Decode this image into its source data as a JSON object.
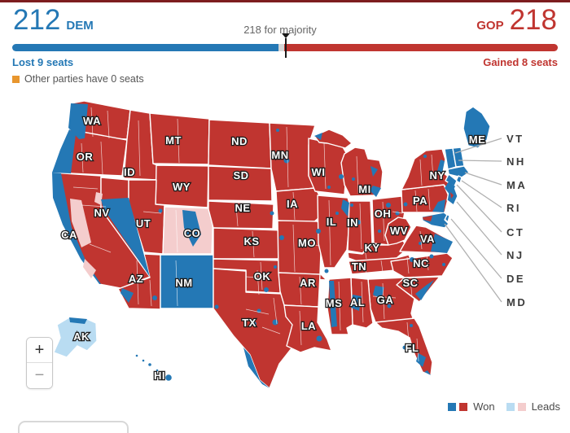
{
  "header": {
    "dem_seats": "212",
    "dem_label": "DEM",
    "majority_label": "218 for majority",
    "gop_label": "GOP",
    "gop_seats": "218",
    "dem_change": "Lost 9 seats",
    "gop_change": "Gained 8 seats",
    "other_note": "Other parties have 0 seats"
  },
  "bar": {
    "dem_seats": 212,
    "gop_seats": 218,
    "total_seats": 435,
    "majority": 218
  },
  "legend": {
    "won": "Won",
    "leads": "Leads"
  },
  "zoom_control": {
    "zoom_in": "+",
    "zoom_out": "−"
  },
  "colors": {
    "dem": "#2478b5",
    "gop": "#c03530",
    "dem_lead": "#b9dcf2",
    "gop_lead": "#f4cdcd",
    "undecided": "#d6d6d6",
    "other": "#e8962e",
    "marker": "#1a1a1a",
    "muted_text": "#666666",
    "legend_text": "#4a4a4a",
    "callout_text": "#3c3c3c",
    "leader_line": "#b0b0b0",
    "top_rule": "#7d1d1f"
  },
  "map": {
    "states": [
      {
        "abbr": "WA",
        "result": "gop"
      },
      {
        "abbr": "OR",
        "result": "gop"
      },
      {
        "abbr": "CA",
        "result": "gop"
      },
      {
        "abbr": "NV",
        "result": "gop"
      },
      {
        "abbr": "ID",
        "result": "gop"
      },
      {
        "abbr": "MT",
        "result": "gop"
      },
      {
        "abbr": "WY",
        "result": "gop"
      },
      {
        "abbr": "UT",
        "result": "gop"
      },
      {
        "abbr": "CO",
        "result": "gop_lead"
      },
      {
        "abbr": "AZ",
        "result": "gop"
      },
      {
        "abbr": "NM",
        "result": "dem"
      },
      {
        "abbr": "ND",
        "result": "gop"
      },
      {
        "abbr": "SD",
        "result": "gop"
      },
      {
        "abbr": "NE",
        "result": "gop"
      },
      {
        "abbr": "KS",
        "result": "gop"
      },
      {
        "abbr": "OK",
        "result": "gop"
      },
      {
        "abbr": "TX",
        "result": "gop"
      },
      {
        "abbr": "MN",
        "result": "gop"
      },
      {
        "abbr": "IA",
        "result": "gop"
      },
      {
        "abbr": "MO",
        "result": "gop"
      },
      {
        "abbr": "AR",
        "result": "gop"
      },
      {
        "abbr": "LA",
        "result": "gop"
      },
      {
        "abbr": "WI",
        "result": "gop"
      },
      {
        "abbr": "IL",
        "result": "gop"
      },
      {
        "abbr": "IN",
        "result": "gop"
      },
      {
        "abbr": "MI",
        "result": "gop"
      },
      {
        "abbr": "OH",
        "result": "gop"
      },
      {
        "abbr": "KY",
        "result": "gop"
      },
      {
        "abbr": "TN",
        "result": "gop"
      },
      {
        "abbr": "WV",
        "result": "gop"
      },
      {
        "abbr": "VA",
        "result": "gop"
      },
      {
        "abbr": "NC",
        "result": "gop"
      },
      {
        "abbr": "SC",
        "result": "gop"
      },
      {
        "abbr": "GA",
        "result": "gop"
      },
      {
        "abbr": "AL",
        "result": "gop"
      },
      {
        "abbr": "MS",
        "result": "gop"
      },
      {
        "abbr": "FL",
        "result": "gop"
      },
      {
        "abbr": "PA",
        "result": "gop"
      },
      {
        "abbr": "NY",
        "result": "gop"
      },
      {
        "abbr": "ME",
        "result": "dem"
      },
      {
        "abbr": "AK",
        "result": "dem_lead"
      },
      {
        "abbr": "HI",
        "result": "dem"
      }
    ],
    "callouts": [
      {
        "abbr": "VT",
        "result": "dem"
      },
      {
        "abbr": "NH",
        "result": "dem"
      },
      {
        "abbr": "MA",
        "result": "dem"
      },
      {
        "abbr": "RI",
        "result": "dem"
      },
      {
        "abbr": "CT",
        "result": "dem"
      },
      {
        "abbr": "NJ",
        "result": "dem"
      },
      {
        "abbr": "DE",
        "result": "dem"
      },
      {
        "abbr": "MD",
        "result": "dem"
      }
    ]
  }
}
